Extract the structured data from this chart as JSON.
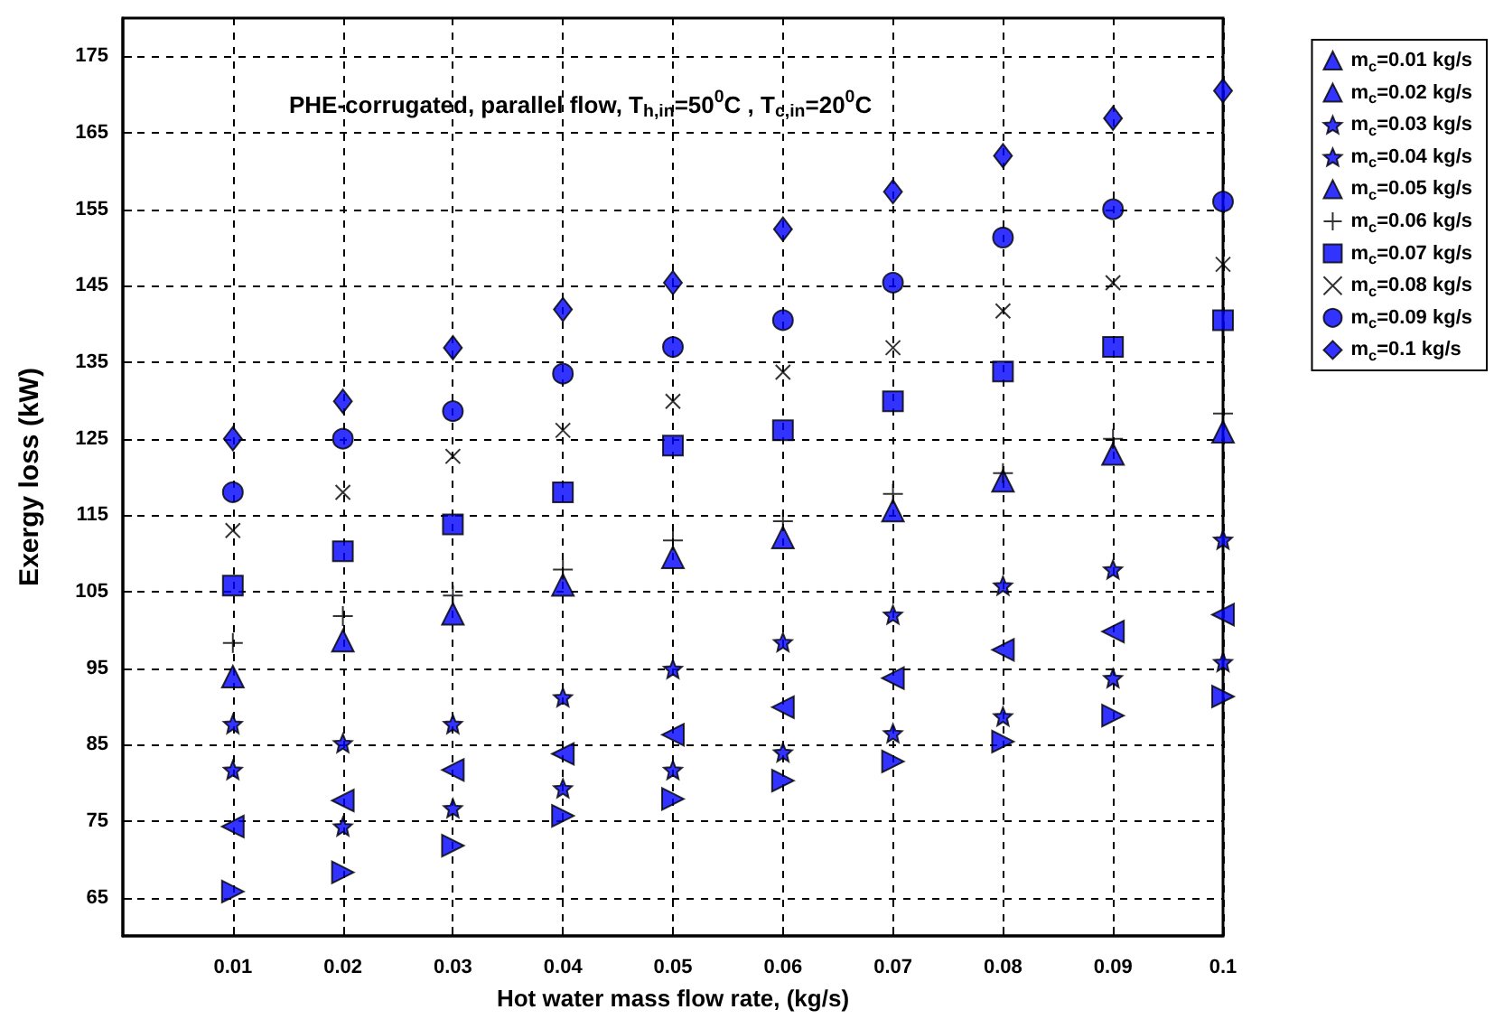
{
  "chart_data": {
    "type": "scatter",
    "title": "PHE-corrugated, parallel flow, T$_{h,in}$=50$^{0}$C , T$_{c,in}$=20$^{0}$C",
    "xlabel": "Hot water mass flow rate, (kg/s)",
    "ylabel": "Exergy loss (kW)",
    "x": [
      0.01,
      0.02,
      0.03,
      0.04,
      0.05,
      0.06,
      0.07,
      0.08,
      0.09,
      0.1
    ],
    "series": [
      {
        "name": "m$_{c}$=0.01 kg/s",
        "color": "#0000ff",
        "marker": "triangle-right",
        "values": [
          65.8,
          68.3,
          71.8,
          75.7,
          77.9,
          80.3,
          82.8,
          85.4,
          88.8,
          91.3
        ]
      },
      {
        "name": "m$_{c}$=0.02 kg/s",
        "color": "#0000ff",
        "marker": "triangle-left",
        "values": [
          74.3,
          77.7,
          81.7,
          83.8,
          86.3,
          89.9,
          93.7,
          97.4,
          99.8,
          102.0
        ]
      },
      {
        "name": "m$_{c}$=0.03 kg/s",
        "color": "#0000ff",
        "marker": "star",
        "values": [
          81.7,
          85.2,
          87.7,
          91.2,
          94.9,
          98.4,
          102.0,
          105.8,
          107.9,
          111.8
        ]
      },
      {
        "name": "m$_{c}$=0.04 kg/s",
        "color": "#0000ff",
        "marker": "star",
        "values": [
          87.7,
          74.3,
          76.7,
          79.3,
          81.7,
          84.0,
          86.5,
          88.7,
          93.7,
          95.8
        ]
      },
      {
        "name": "m$_{c}$=0.05 kg/s",
        "color": "#0000ff",
        "marker": "triangle",
        "values": [
          93.9,
          98.6,
          102.1,
          105.9,
          109.5,
          112.1,
          115.6,
          119.5,
          123.0,
          125.9
        ]
      },
      {
        "name": "m$_{c}$=0.06 kg/s",
        "color": "#000000",
        "marker": "plus",
        "values": [
          98.3,
          101.8,
          104.5,
          107.9,
          111.7,
          114.2,
          117.8,
          120.5,
          125.0,
          128.3
        ]
      },
      {
        "name": "m$_{c}$=0.07 kg/s",
        "color": "#0000ff",
        "marker": "square",
        "values": [
          105.8,
          110.3,
          113.8,
          118.0,
          124.1,
          126.1,
          129.9,
          133.8,
          137.0,
          140.5
        ]
      },
      {
        "name": "m$_{c}$=0.08 kg/s",
        "color": "#000000",
        "marker": "cross",
        "values": [
          113.0,
          118.0,
          122.7,
          126.1,
          129.9,
          133.7,
          136.9,
          141.7,
          145.4,
          147.8
        ]
      },
      {
        "name": "m$_{c}$=0.09 kg/s",
        "color": "#0000ff",
        "marker": "circle",
        "values": [
          118.0,
          125.0,
          128.6,
          133.5,
          137.0,
          140.5,
          145.4,
          151.3,
          155.0,
          156.0
        ]
      },
      {
        "name": "m$_{c}$=0.1 kg/s",
        "color": "#0000ff",
        "marker": "diamond",
        "values": [
          125.0,
          129.9,
          136.9,
          141.9,
          145.4,
          152.4,
          157.3,
          162.0,
          166.9,
          170.5
        ]
      }
    ],
    "xlim": [
      0,
      0.1
    ],
    "xticks": [
      0.01,
      0.02,
      0.03,
      0.04,
      0.05,
      0.06,
      0.07,
      0.08,
      0.09,
      0.1
    ],
    "ylim": [
      60,
      180
    ],
    "yticks": [
      65,
      75,
      85,
      95,
      105,
      115,
      125,
      135,
      145,
      155,
      165,
      175
    ],
    "grid": true,
    "legend": "top right"
  }
}
